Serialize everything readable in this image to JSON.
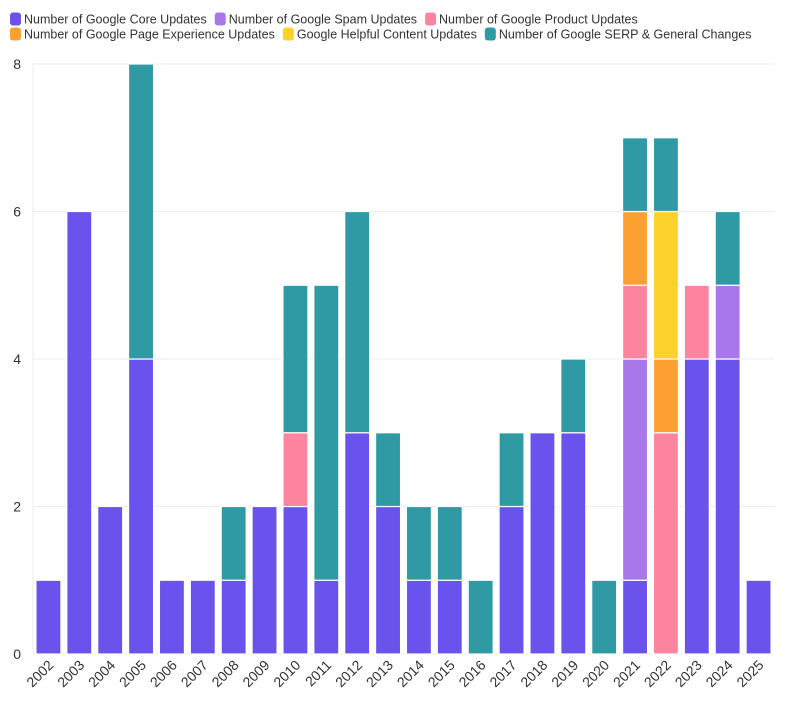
{
  "chart_data": {
    "type": "bar",
    "stacked": true,
    "title": "",
    "xlabel": "",
    "ylabel": "",
    "ylim": [
      0,
      8
    ],
    "yticks": [
      0,
      2,
      4,
      6,
      8
    ],
    "grid": true,
    "legend_position": "top-left",
    "categories": [
      "2002",
      "2003",
      "2004",
      "2005",
      "2006",
      "2007",
      "2008",
      "2009",
      "2010",
      "2011",
      "2012",
      "2013",
      "2014",
      "2015",
      "2016",
      "2017",
      "2018",
      "2019",
      "2020",
      "2021",
      "2022",
      "2023",
      "2024",
      "2025"
    ],
    "series": [
      {
        "name": "Number of Google Core Updates",
        "color": "#6a52ec",
        "values": [
          1,
          6,
          2,
          4,
          1,
          1,
          1,
          2,
          2,
          1,
          3,
          2,
          1,
          1,
          0,
          2,
          3,
          3,
          0,
          1,
          0,
          4,
          4,
          1
        ]
      },
      {
        "name": "Number of Google Spam Updates",
        "color": "#a878eb",
        "values": [
          0,
          0,
          0,
          0,
          0,
          0,
          0,
          0,
          0,
          0,
          0,
          0,
          0,
          0,
          0,
          0,
          0,
          0,
          0,
          3,
          0,
          0,
          1,
          0
        ]
      },
      {
        "name": "Number of Google Product Updates",
        "color": "#fd849f",
        "values": [
          0,
          0,
          0,
          0,
          0,
          0,
          0,
          0,
          1,
          0,
          0,
          0,
          0,
          0,
          0,
          0,
          0,
          0,
          0,
          1,
          3,
          1,
          0,
          0
        ]
      },
      {
        "name": "Number of Google Page Experience Updates",
        "color": "#fca131",
        "values": [
          0,
          0,
          0,
          0,
          0,
          0,
          0,
          0,
          0,
          0,
          0,
          0,
          0,
          0,
          0,
          0,
          0,
          0,
          0,
          1,
          1,
          0,
          0,
          0
        ]
      },
      {
        "name": "Google Helpful Content Updates",
        "color": "#fdd12c",
        "values": [
          0,
          0,
          0,
          0,
          0,
          0,
          0,
          0,
          0,
          0,
          0,
          0,
          0,
          0,
          0,
          0,
          0,
          0,
          0,
          0,
          2,
          0,
          0,
          0
        ]
      },
      {
        "name": "Number of Google SERP & General Changes",
        "color": "#2f9aa4",
        "values": [
          0,
          0,
          0,
          4,
          0,
          0,
          1,
          0,
          2,
          4,
          3,
          1,
          1,
          1,
          1,
          1,
          0,
          1,
          1,
          1,
          1,
          0,
          1,
          0
        ]
      }
    ]
  }
}
